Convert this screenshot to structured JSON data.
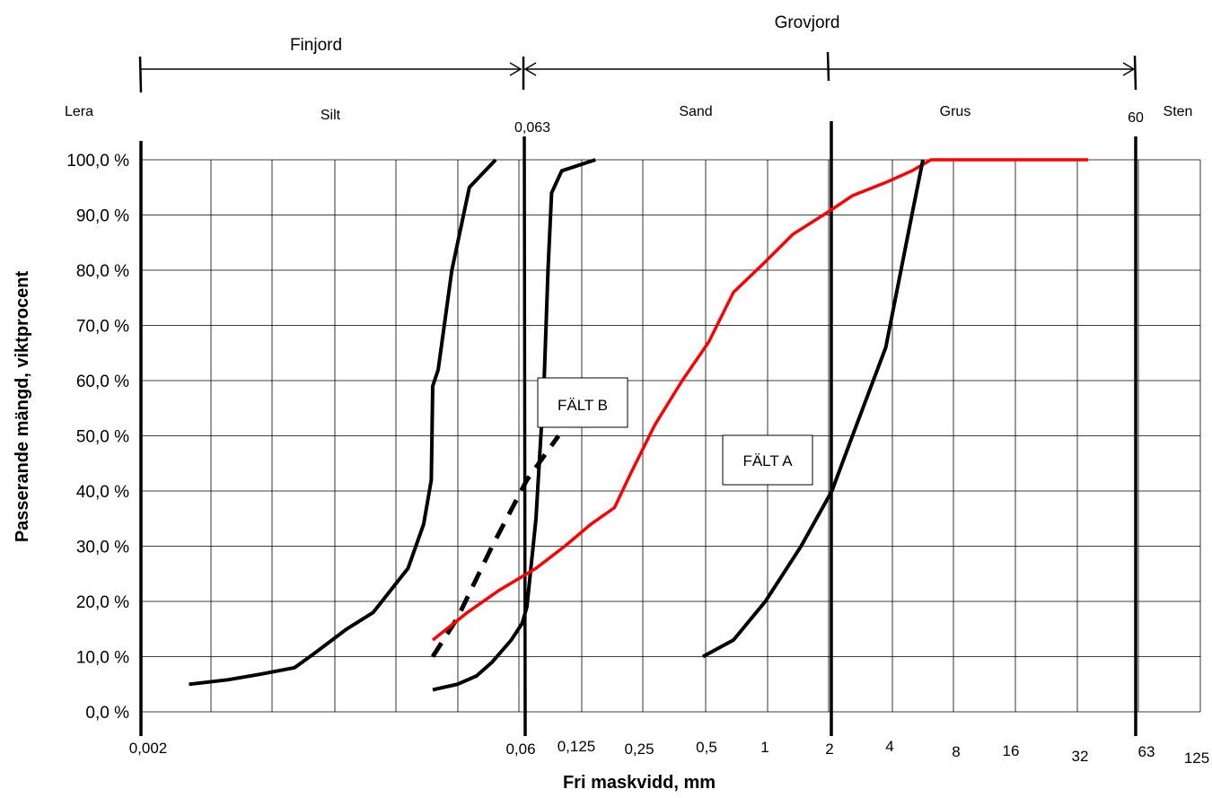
{
  "chart_data": {
    "type": "line",
    "title": "",
    "xlabel": "Fri maskvidd, mm",
    "ylabel": "Passerande mängd, viktprocent",
    "x_scale": "log",
    "y_scale": "linear",
    "ylim": [
      0,
      100
    ],
    "yticks": [
      "0,0 %",
      "10,0 %",
      "20,0 %",
      "30,0 %",
      "40,0 %",
      "50,0 %",
      "60,0 %",
      "70,0 %",
      "80,0 %",
      "90,0 %",
      "100,0 %"
    ],
    "xticks": [
      "0,002",
      "0,06",
      "0,125",
      "0,25",
      "0,5",
      "1",
      "2",
      "4",
      "8",
      "16",
      "32",
      "63",
      "125"
    ],
    "grid": true,
    "groups": [
      {
        "label": "Finjord"
      },
      {
        "label": "Grovjord"
      }
    ],
    "zones": [
      {
        "label": "Lera"
      },
      {
        "label": "Silt"
      },
      {
        "label": "0,063"
      },
      {
        "label": "Sand"
      },
      {
        "label": "Grus"
      },
      {
        "label": "60"
      },
      {
        "label": "Sten"
      }
    ],
    "fields": [
      {
        "label": "FÄLT B"
      },
      {
        "label": "FÄLT A"
      }
    ],
    "series": [
      {
        "color": "#000000",
        "style": "solid",
        "points": [
          [
            0.0035,
            5
          ],
          [
            0.0055,
            5.8
          ],
          [
            0.008,
            6.8
          ],
          [
            0.012,
            8
          ],
          [
            0.015,
            10.5
          ],
          [
            0.022,
            15
          ],
          [
            0.03,
            18
          ],
          [
            0.045,
            26
          ],
          [
            0.054,
            34
          ],
          [
            0.059,
            42
          ],
          [
            0.06,
            59
          ],
          [
            0.064,
            62
          ],
          [
            0.075,
            80
          ],
          [
            0.092,
            95
          ],
          [
            0.125,
            100
          ]
        ]
      },
      {
        "color": "#000000",
        "style": "solid",
        "points": [
          [
            0.06,
            4
          ],
          [
            0.08,
            5
          ],
          [
            0.1,
            6.5
          ],
          [
            0.12,
            9
          ],
          [
            0.15,
            13
          ],
          [
            0.17,
            16
          ],
          [
            0.18,
            19
          ],
          [
            0.2,
            35
          ],
          [
            0.22,
            60
          ],
          [
            0.23,
            80
          ],
          [
            0.24,
            94
          ],
          [
            0.27,
            98
          ],
          [
            0.4,
            100
          ]
        ]
      },
      {
        "color": "#000000",
        "style": "dashed",
        "points": [
          [
            0.06,
            10
          ],
          [
            0.08,
            17
          ],
          [
            0.12,
            30
          ],
          [
            0.18,
            42
          ],
          [
            0.26,
            50
          ]
        ]
      },
      {
        "color": "#ff0000",
        "style": "solid",
        "points": [
          [
            0.06,
            13
          ],
          [
            0.09,
            18
          ],
          [
            0.13,
            22
          ],
          [
            0.2,
            26
          ],
          [
            0.28,
            30
          ],
          [
            0.38,
            34
          ],
          [
            0.5,
            37
          ],
          [
            0.6,
            43
          ],
          [
            0.8,
            52
          ],
          [
            1.1,
            60
          ],
          [
            1.5,
            67
          ],
          [
            2.0,
            76
          ],
          [
            2.8,
            81
          ],
          [
            4,
            86.5
          ],
          [
            6,
            90.5
          ],
          [
            8,
            93.5
          ],
          [
            12,
            96
          ],
          [
            16,
            98
          ],
          [
            20,
            100
          ],
          [
            32,
            100
          ],
          [
            125,
            100
          ]
        ]
      },
      {
        "color": "#000000",
        "style": "solid",
        "points": [
          [
            1.4,
            10
          ],
          [
            2.0,
            13
          ],
          [
            2.9,
            20
          ],
          [
            4.4,
            30
          ],
          [
            6.3,
            40
          ],
          [
            8.2,
            51
          ],
          [
            11.8,
            66
          ],
          [
            16,
            90
          ],
          [
            18.2,
            100
          ]
        ]
      }
    ]
  }
}
